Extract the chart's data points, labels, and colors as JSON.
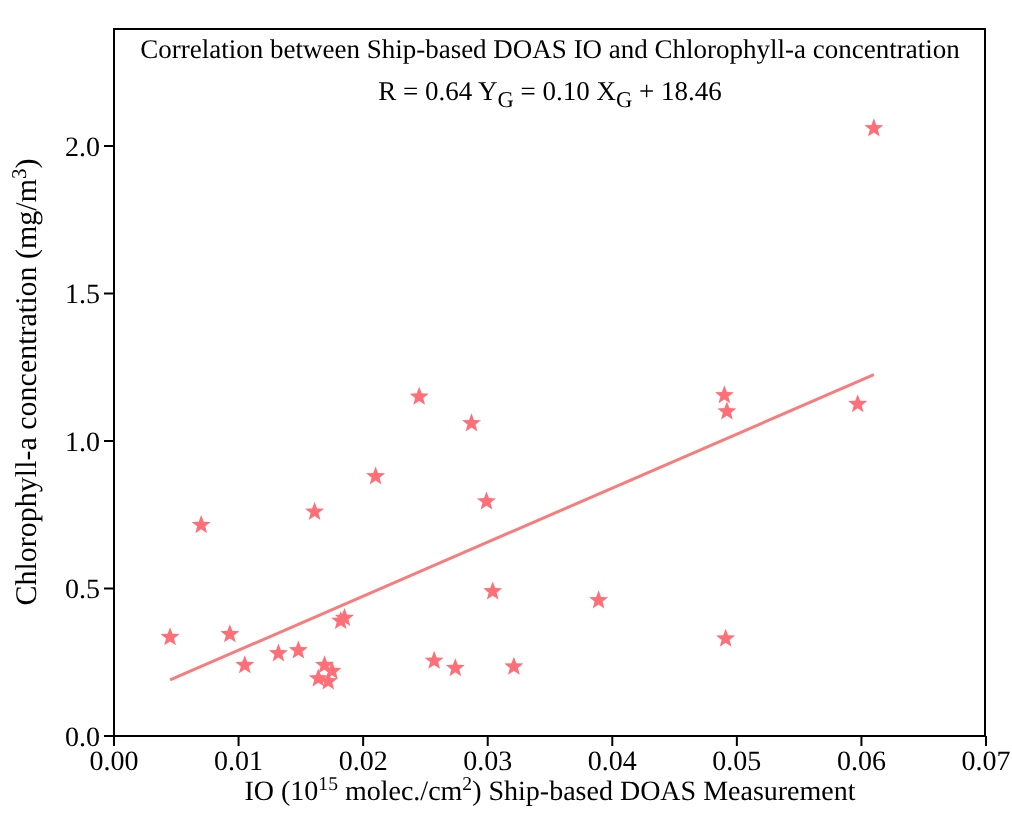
{
  "chart_data": {
    "type": "scatter",
    "title": "Correlation between Ship-based DOAS IO and Chlorophyll-a concentration",
    "subtitle": "R = 0.64  Y$_{G}$ = 0.10 X$_{G}$ + 18.46",
    "xlabel": "IO (10$^{15}$ molec./cm$^{2}$) Ship-based DOAS Measurement",
    "ylabel": "Chlorophyll-a concentration (mg/m$^{3}$)",
    "xlim": [
      0,
      0.07
    ],
    "xticks": [
      {
        "value": 0,
        "label": "0.00"
      },
      {
        "value": 0.01,
        "label": "0.01"
      },
      {
        "value": 0.02,
        "label": "0.02"
      },
      {
        "value": 0.03,
        "label": "0.03"
      },
      {
        "value": 0.04,
        "label": "0.04"
      },
      {
        "value": 0.05,
        "label": "0.05"
      },
      {
        "value": 0.06,
        "label": "0.06"
      },
      {
        "value": 0.07,
        "label": "0.07"
      }
    ],
    "ylim": [
      0,
      2.4
    ],
    "yticks": [
      {
        "value": 0,
        "label": "0.0"
      },
      {
        "value": 0.5,
        "label": "0.5"
      },
      {
        "value": 1,
        "label": "1.0"
      },
      {
        "value": 1.5,
        "label": "1.5"
      },
      {
        "value": 2,
        "label": "2.0"
      }
    ],
    "marker": "star",
    "series": [
      {
        "color": "#ff6f78",
        "x": [
          0.0045,
          0.007,
          0.0093,
          0.0105,
          0.0132,
          0.0148,
          0.0161,
          0.0164,
          0.0169,
          0.0172,
          0.0175,
          0.0182,
          0.0185,
          0.021,
          0.0245,
          0.0257,
          0.0274,
          0.0287,
          0.0299,
          0.0304,
          0.0321,
          0.0389,
          0.049,
          0.0492,
          0.0491,
          0.0597,
          0.061
        ],
        "values": [
          0.335,
          0.715,
          0.345,
          0.24,
          0.28,
          0.29,
          0.76,
          0.195,
          0.24,
          0.185,
          0.22,
          0.39,
          0.4,
          0.88,
          1.15,
          0.255,
          0.23,
          1.06,
          0.795,
          0.49,
          0.235,
          0.46,
          1.155,
          1.1,
          0.33,
          1.125,
          2.06
        ]
      },
      {
        "type": "line",
        "color": "#f77c7c",
        "marker": "none",
        "x": [
          0.0045,
          0.061
        ],
        "values": [
          0.19,
          1.225
        ]
      }
    ]
  }
}
